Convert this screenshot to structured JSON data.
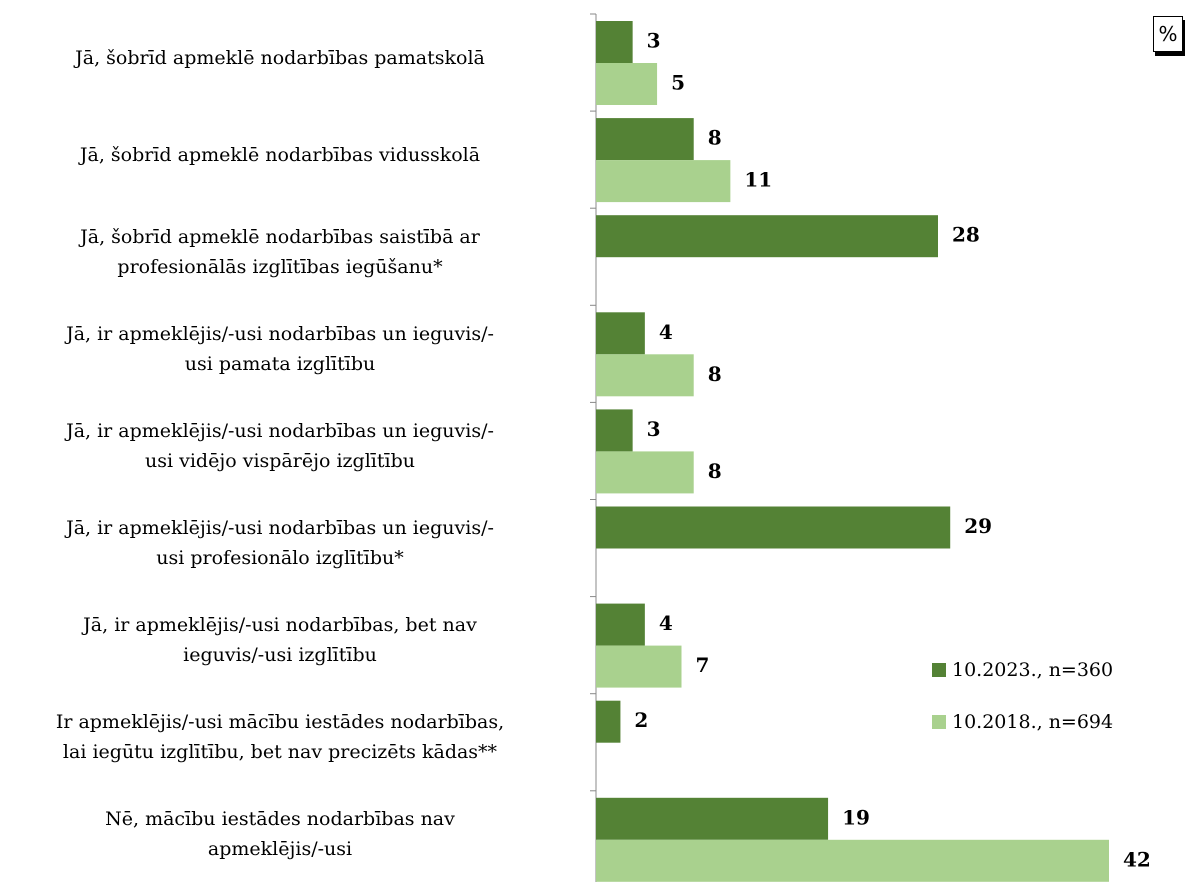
{
  "chart_data": {
    "type": "barh",
    "unit": "%",
    "categories": [
      "Jā, šobrīd apmeklē nodarbības pamatskolā",
      "Jā, šobrīd apmeklē nodarbības vidusskolā",
      "Jā, šobrīd apmeklē nodarbības saistībā ar\nprofesionālās izglītības iegūšanu*",
      "Jā, ir apmeklējis/-usi nodarbības un ieguvis/-\nusi pamata izglītību",
      "Jā, ir apmeklējis/-usi nodarbības un ieguvis/-\nusi vidējo vispārējo izglītību",
      "Jā, ir apmeklējis/-usi nodarbības un ieguvis/-\nusi profesionālo izglītību*",
      "Jā, ir apmeklējis/-usi nodarbības, bet nav\nieguvis/-usi izglītību",
      "Ir apmeklējis/-usi mācību iestādes nodarbības,\nlai iegūtu izglītību, bet nav precizēts kādas**",
      "Nē, mācību iestādes nodarbības nav\napmeklējis/-usi"
    ],
    "series": [
      {
        "name": "10.2023., n=360",
        "color": "#548235",
        "values": [
          3,
          8,
          28,
          4,
          3,
          29,
          4,
          2,
          19
        ]
      },
      {
        "name": "10.2018., n=694",
        "color": "#a9d18e",
        "values": [
          5,
          11,
          null,
          8,
          8,
          null,
          7,
          null,
          42
        ]
      }
    ]
  }
}
